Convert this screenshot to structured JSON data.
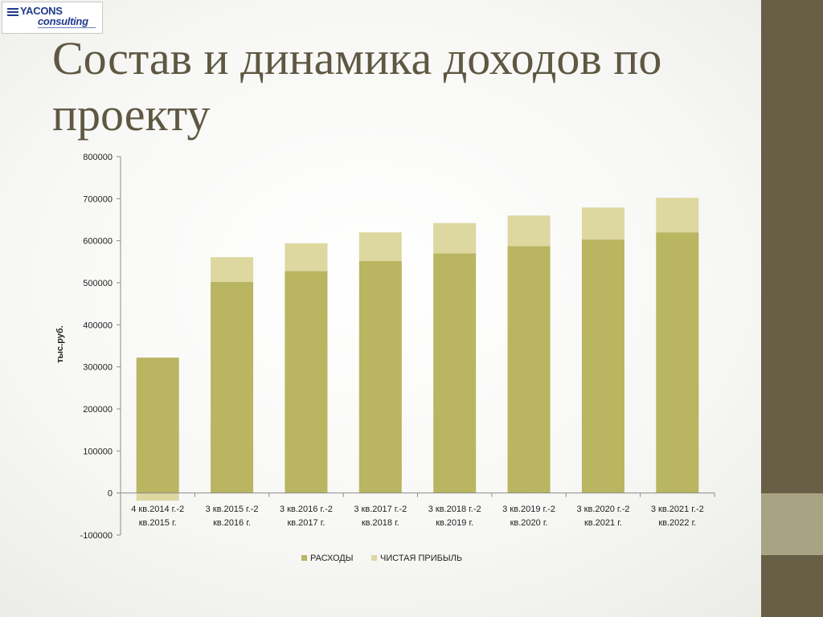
{
  "logo": {
    "line1": "YACONS",
    "line2": "consulting"
  },
  "slide": {
    "title": "Состав и динамика доходов по проекту"
  },
  "colors": {
    "expenses": "#b9b560",
    "profit": "#ddd7a0",
    "side_panel": "#675f46",
    "side_accent": "#a8a382",
    "title": "#5e5842"
  },
  "chart_data": {
    "type": "bar",
    "stacked": true,
    "categories": [
      [
        "4 кв.2014 г.-2",
        "кв.2015 г."
      ],
      [
        "3 кв.2015 г.-2",
        "кв.2016 г."
      ],
      [
        "3 кв.2016 г.-2",
        "кв.2017 г."
      ],
      [
        "3 кв.2017 г.-2",
        "кв.2018 г."
      ],
      [
        "3 кв.2018 г.-2",
        "кв.2019 г."
      ],
      [
        "3 кв.2019 г.-2",
        "кв.2020 г."
      ],
      [
        "3 кв.2020 г.-2",
        "кв.2021 г."
      ],
      [
        "3 кв.2021 г.-2",
        "кв.2022 г."
      ]
    ],
    "series": [
      {
        "name": "РАСХОДЫ",
        "values": [
          322000,
          502000,
          528000,
          552000,
          570000,
          587000,
          603000,
          620000
        ]
      },
      {
        "name": "ЧИСТАЯ ПРИБЫЛЬ",
        "values": [
          -18000,
          59000,
          66000,
          68000,
          72000,
          73000,
          76000,
          82000
        ]
      }
    ],
    "ylabel": "тыс.руб.",
    "xlabel": "",
    "ylim": [
      -100000,
      800000
    ],
    "yticks": [
      "800000",
      "700000",
      "600000",
      "500000",
      "400000",
      "300000",
      "200000",
      "100000",
      "0",
      "-100000"
    ],
    "grid": false,
    "legend": "bottom"
  }
}
